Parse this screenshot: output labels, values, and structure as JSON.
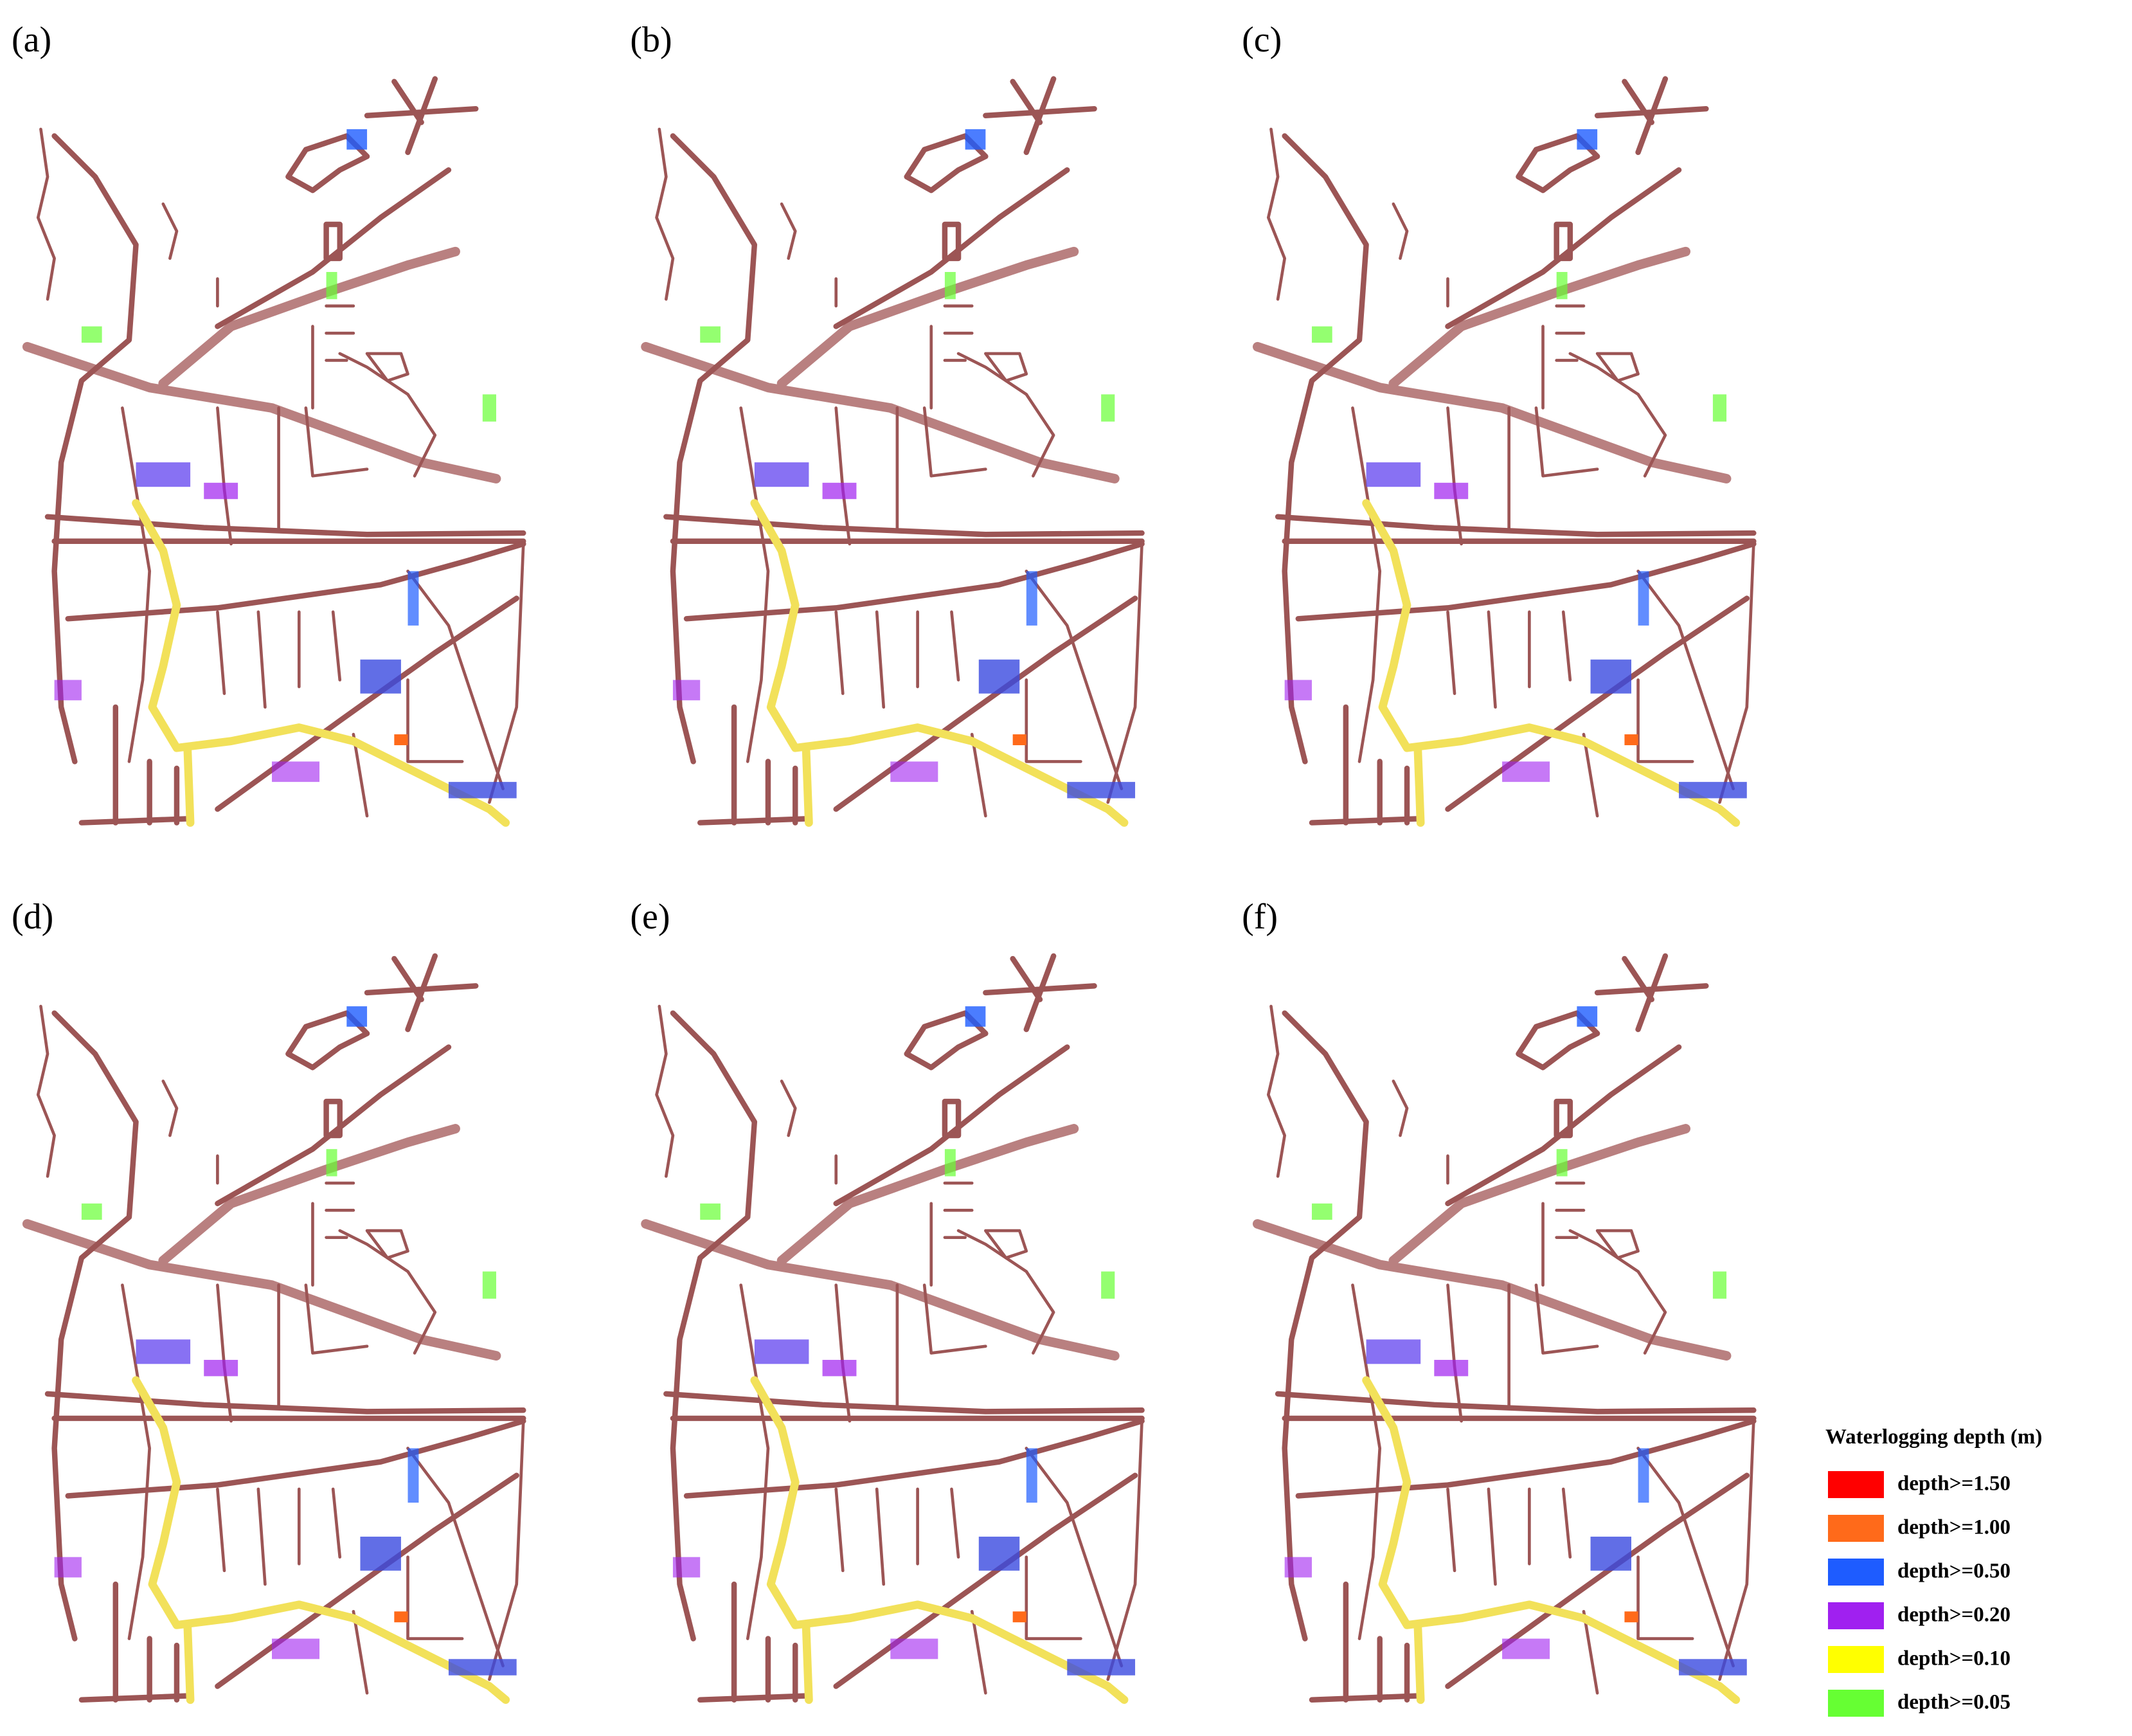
{
  "panels": [
    {
      "label": "(a)"
    },
    {
      "label": "(b)"
    },
    {
      "label": "(c)"
    },
    {
      "label": "(d)"
    },
    {
      "label": "(e)"
    },
    {
      "label": "(f)"
    }
  ],
  "legend": {
    "title": "Waterlogging depth (m)",
    "items": [
      {
        "label": "depth>=1.50",
        "color": "#ff0000"
      },
      {
        "label": "depth>=1.00",
        "color": "#ff6a1a"
      },
      {
        "label": "depth>=0.50",
        "color": "#1e5cff"
      },
      {
        "label": "depth>=0.20",
        "color": "#a020f0"
      },
      {
        "label": "depth>=0.10",
        "color": "#ffff00"
      },
      {
        "label": "depth>=0.05",
        "color": "#66ff33"
      }
    ]
  }
}
